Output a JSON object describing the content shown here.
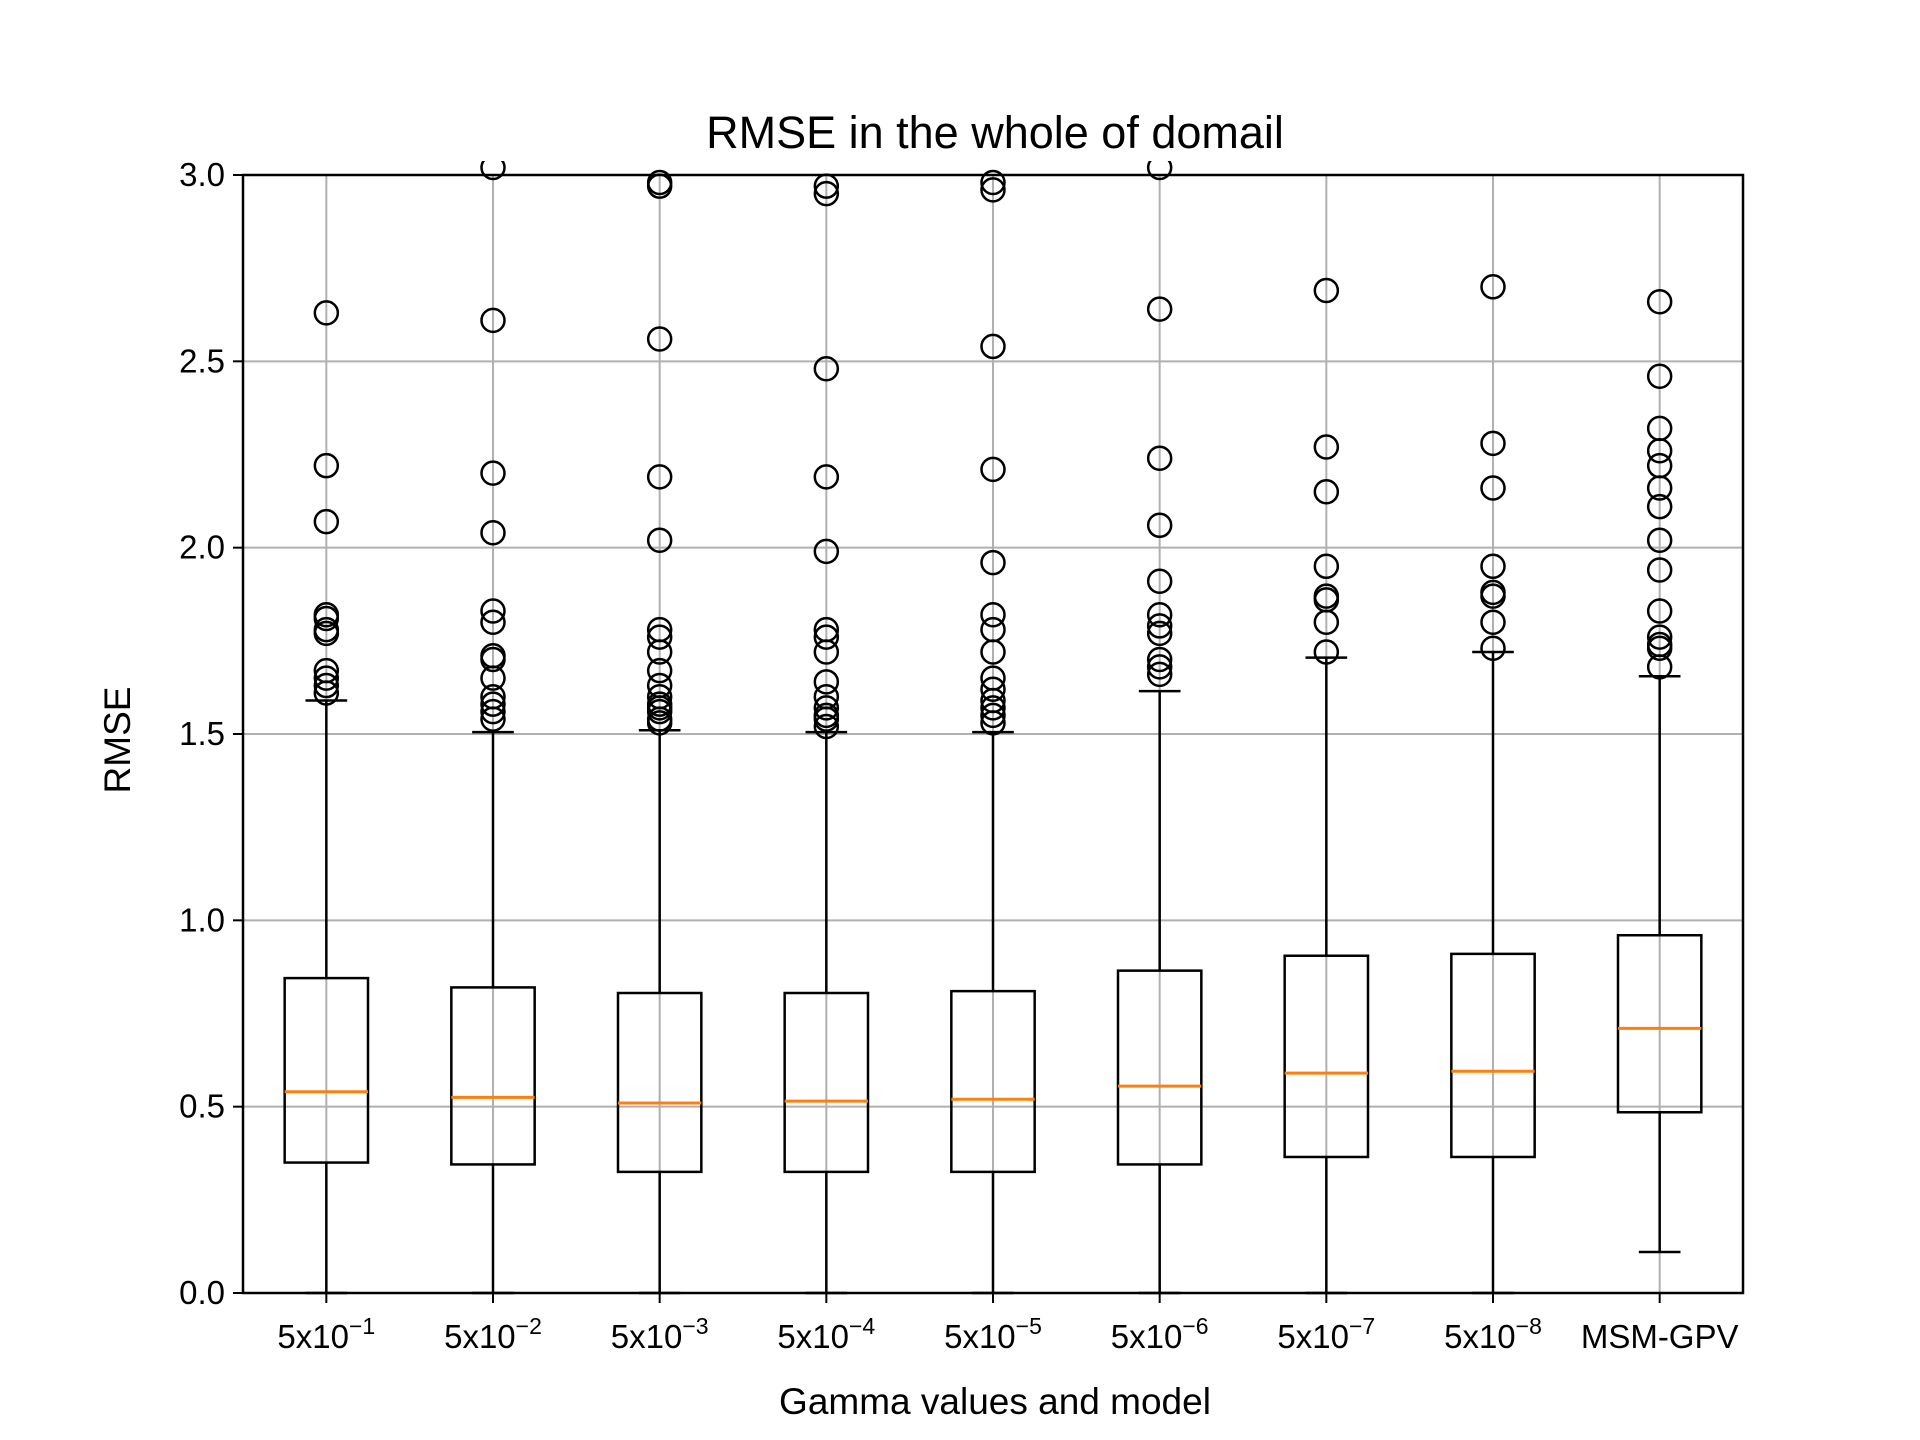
{
  "chart_data": {
    "type": "box",
    "title": "RMSE in the whole of domail",
    "xlabel": "Gamma values and model",
    "ylabel": "RMSE",
    "ylim": [
      0.0,
      3.0
    ],
    "yticks": [
      0.0,
      0.5,
      1.0,
      1.5,
      2.0,
      2.5,
      3.0
    ],
    "ytick_labels": [
      "0.0",
      "0.5",
      "1.0",
      "1.5",
      "2.0",
      "2.5",
      "3.0"
    ],
    "grid": true,
    "colors": {
      "median": "#ff7f0e",
      "box": "#000000",
      "grid": "#b0b0b0"
    },
    "categories": [
      {
        "base": "5x10",
        "exp": "−1"
      },
      {
        "base": "5x10",
        "exp": "−2"
      },
      {
        "base": "5x10",
        "exp": "−3"
      },
      {
        "base": "5x10",
        "exp": "−4"
      },
      {
        "base": "5x10",
        "exp": "−5"
      },
      {
        "base": "5x10",
        "exp": "−6"
      },
      {
        "base": "5x10",
        "exp": "−7"
      },
      {
        "base": "5x10",
        "exp": "−8"
      },
      {
        "base": "MSM-GPV",
        "exp": ""
      }
    ],
    "boxes": [
      {
        "whisker_low": 0.0,
        "q1": 0.35,
        "median": 0.54,
        "q3": 0.845,
        "whisker_high": 1.59,
        "fliers": [
          1.61,
          1.63,
          1.65,
          1.67,
          1.77,
          1.78,
          1.81,
          1.82,
          2.07,
          2.22,
          2.63
        ]
      },
      {
        "whisker_low": 0.0,
        "q1": 0.345,
        "median": 0.525,
        "q3": 0.82,
        "whisker_high": 1.505,
        "fliers": [
          1.54,
          1.56,
          1.58,
          1.6,
          1.65,
          1.7,
          1.71,
          1.8,
          1.83,
          2.04,
          2.2,
          2.61,
          3.02
        ]
      },
      {
        "whisker_low": 0.0,
        "q1": 0.325,
        "median": 0.51,
        "q3": 0.805,
        "whisker_high": 1.51,
        "fliers": [
          1.53,
          1.54,
          1.56,
          1.57,
          1.58,
          1.6,
          1.63,
          1.67,
          1.72,
          1.76,
          1.78,
          2.02,
          2.19,
          2.56,
          2.97,
          2.98
        ]
      },
      {
        "whisker_low": 0.0,
        "q1": 0.325,
        "median": 0.515,
        "q3": 0.805,
        "whisker_high": 1.505,
        "fliers": [
          1.52,
          1.54,
          1.55,
          1.57,
          1.6,
          1.64,
          1.72,
          1.76,
          1.78,
          1.99,
          2.19,
          2.48,
          2.95,
          2.97
        ]
      },
      {
        "whisker_low": 0.0,
        "q1": 0.325,
        "median": 0.52,
        "q3": 0.81,
        "whisker_high": 1.505,
        "fliers": [
          1.53,
          1.55,
          1.57,
          1.59,
          1.62,
          1.65,
          1.72,
          1.78,
          1.82,
          1.96,
          2.21,
          2.54,
          2.96,
          2.98
        ]
      },
      {
        "whisker_low": 0.0,
        "q1": 0.345,
        "median": 0.555,
        "q3": 0.865,
        "whisker_high": 1.615,
        "fliers": [
          1.66,
          1.68,
          1.7,
          1.77,
          1.79,
          1.82,
          1.91,
          2.06,
          2.24,
          2.64,
          3.02
        ]
      },
      {
        "whisker_low": 0.0,
        "q1": 0.365,
        "median": 0.59,
        "q3": 0.905,
        "whisker_high": 1.705,
        "fliers": [
          1.72,
          1.8,
          1.86,
          1.87,
          1.95,
          2.15,
          2.27,
          2.69
        ]
      },
      {
        "whisker_low": 0.0,
        "q1": 0.365,
        "median": 0.595,
        "q3": 0.91,
        "whisker_high": 1.72,
        "fliers": [
          1.73,
          1.8,
          1.87,
          1.88,
          1.95,
          2.16,
          2.28,
          2.7
        ]
      },
      {
        "whisker_low": 0.11,
        "q1": 0.485,
        "median": 0.71,
        "q3": 0.96,
        "whisker_high": 1.655,
        "fliers": [
          1.68,
          1.73,
          1.74,
          1.76,
          1.83,
          1.94,
          2.02,
          2.11,
          2.16,
          2.22,
          2.26,
          2.32,
          2.46,
          2.66
        ]
      }
    ]
  }
}
